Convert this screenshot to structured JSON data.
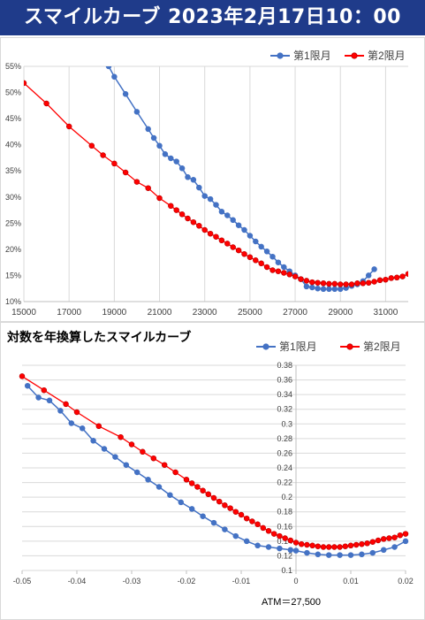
{
  "header": {
    "title": "スマイルカーブ  2023年2月17日10：00"
  },
  "chart2_title": "対数を年換算したスマイルカーブ",
  "atm_label": "ATM＝27,500",
  "colors": {
    "header_bg": "#1f3b8a",
    "series1": "#4472c4",
    "series2": "#ff0000",
    "grid": "#d9d9d9"
  },
  "chart_data": [
    {
      "type": "line",
      "title": "",
      "xlabel": "",
      "ylabel": "",
      "xlim": [
        15000,
        32000
      ],
      "ylim": [
        0.1,
        0.55
      ],
      "x_ticks": [
        15000,
        17000,
        19000,
        21000,
        23000,
        25000,
        27000,
        29000,
        31000
      ],
      "y_ticks": [
        0.1,
        0.15,
        0.2,
        0.25,
        0.3,
        0.35,
        0.4,
        0.45,
        0.5,
        0.55
      ],
      "y_tick_labels": [
        "10%",
        "15%",
        "20%",
        "25%",
        "30%",
        "35%",
        "40%",
        "45%",
        "50%",
        "55%"
      ],
      "grid": "vertical",
      "legend": "top-right",
      "series": [
        {
          "name": "第1限月",
          "color": "#4472c4",
          "x": [
            18750,
            19000,
            19500,
            20000,
            20500,
            20750,
            21000,
            21250,
            21500,
            21750,
            22000,
            22250,
            22500,
            22750,
            23000,
            23250,
            23500,
            23750,
            24000,
            24250,
            24500,
            24750,
            25000,
            25250,
            25500,
            25750,
            26000,
            26250,
            26500,
            26750,
            27000,
            27250,
            27500,
            27750,
            28000,
            28250,
            28500,
            28750,
            29000,
            29250,
            29500,
            29750,
            30000,
            30250,
            30500
          ],
          "y": [
            0.55,
            0.53,
            0.497,
            0.463,
            0.43,
            0.413,
            0.398,
            0.382,
            0.374,
            0.368,
            0.355,
            0.338,
            0.333,
            0.318,
            0.302,
            0.296,
            0.285,
            0.272,
            0.265,
            0.256,
            0.246,
            0.237,
            0.226,
            0.215,
            0.205,
            0.196,
            0.186,
            0.175,
            0.166,
            0.158,
            0.15,
            0.143,
            0.129,
            0.127,
            0.125,
            0.124,
            0.124,
            0.124,
            0.124,
            0.126,
            0.13,
            0.133,
            0.139,
            0.15,
            0.162
          ]
        },
        {
          "name": "第2限月",
          "color": "#ff0000",
          "x": [
            15000,
            16000,
            17000,
            18000,
            18500,
            19000,
            19500,
            20000,
            20500,
            21000,
            21500,
            21750,
            22000,
            22250,
            22500,
            22750,
            23000,
            23250,
            23500,
            23750,
            24000,
            24250,
            24500,
            24750,
            25000,
            25250,
            25500,
            25750,
            26000,
            26250,
            26500,
            26750,
            27000,
            27250,
            27500,
            27750,
            28000,
            28250,
            28500,
            28750,
            29000,
            29250,
            29500,
            29750,
            30000,
            30250,
            30500,
            30750,
            31000,
            31250,
            31500,
            31750,
            32000
          ],
          "y": [
            0.518,
            0.479,
            0.435,
            0.398,
            0.38,
            0.364,
            0.347,
            0.329,
            0.317,
            0.298,
            0.283,
            0.275,
            0.267,
            0.259,
            0.252,
            0.245,
            0.237,
            0.23,
            0.224,
            0.217,
            0.211,
            0.204,
            0.198,
            0.191,
            0.185,
            0.179,
            0.173,
            0.166,
            0.16,
            0.158,
            0.155,
            0.152,
            0.148,
            0.143,
            0.14,
            0.137,
            0.136,
            0.135,
            0.134,
            0.134,
            0.133,
            0.133,
            0.133,
            0.135,
            0.135,
            0.136,
            0.138,
            0.141,
            0.142,
            0.145,
            0.146,
            0.148,
            0.153
          ]
        }
      ]
    },
    {
      "type": "line",
      "title": "対数を年換算したスマイルカーブ",
      "xlabel": "ATM＝27,500",
      "ylabel": "",
      "xlim": [
        -0.05,
        0.02
      ],
      "ylim": [
        0.1,
        0.38
      ],
      "x_ticks": [
        -0.05,
        -0.04,
        -0.03,
        -0.02,
        -0.01,
        0,
        0.01,
        0.02
      ],
      "x_tick_labels": [
        "-0.05",
        "-0.04",
        "-0.03",
        "-0.02",
        "-0.01",
        "0",
        "0.01",
        "0.02"
      ],
      "y_ticks": [
        0.1,
        0.12,
        0.14,
        0.16,
        0.18,
        0.2,
        0.22,
        0.24,
        0.26,
        0.28,
        0.3,
        0.32,
        0.34,
        0.36,
        0.38
      ],
      "y_tick_labels": [
        "0.1",
        "0.12",
        "0.14",
        "0.16",
        "0.18",
        "0.2",
        "0.22",
        "0.24",
        "0.26",
        "0.28",
        "0.3",
        "0.32",
        "0.34",
        "0.36",
        "0.38"
      ],
      "grid": "horizontal",
      "legend": "top-right",
      "series": [
        {
          "name": "第1限月",
          "color": "#4472c4",
          "x": [
            -0.049,
            -0.047,
            -0.045,
            -0.043,
            -0.041,
            -0.039,
            -0.037,
            -0.035,
            -0.033,
            -0.031,
            -0.029,
            -0.027,
            -0.025,
            -0.023,
            -0.021,
            -0.019,
            -0.017,
            -0.015,
            -0.013,
            -0.011,
            -0.009,
            -0.007,
            -0.005,
            -0.003,
            -0.001,
            0.0,
            0.002,
            0.004,
            0.006,
            0.008,
            0.01,
            0.012,
            0.014,
            0.016,
            0.018,
            0.02
          ],
          "y": [
            0.352,
            0.336,
            0.332,
            0.318,
            0.301,
            0.294,
            0.277,
            0.266,
            0.255,
            0.244,
            0.234,
            0.224,
            0.214,
            0.203,
            0.193,
            0.184,
            0.174,
            0.165,
            0.156,
            0.147,
            0.14,
            0.134,
            0.132,
            0.13,
            0.128,
            0.127,
            0.124,
            0.122,
            0.121,
            0.121,
            0.121,
            0.122,
            0.124,
            0.128,
            0.132,
            0.14
          ]
        },
        {
          "name": "第2限月",
          "color": "#ff0000",
          "x": [
            -0.05,
            -0.046,
            -0.042,
            -0.04,
            -0.036,
            -0.032,
            -0.03,
            -0.028,
            -0.026,
            -0.024,
            -0.022,
            -0.02,
            -0.019,
            -0.018,
            -0.017,
            -0.016,
            -0.015,
            -0.014,
            -0.013,
            -0.012,
            -0.011,
            -0.01,
            -0.009,
            -0.008,
            -0.007,
            -0.006,
            -0.005,
            -0.004,
            -0.003,
            -0.002,
            -0.001,
            0.0,
            0.001,
            0.002,
            0.003,
            0.004,
            0.005,
            0.006,
            0.007,
            0.008,
            0.009,
            0.01,
            0.011,
            0.012,
            0.013,
            0.014,
            0.015,
            0.016,
            0.017,
            0.018,
            0.019,
            0.02
          ],
          "y": [
            0.365,
            0.346,
            0.327,
            0.316,
            0.297,
            0.282,
            0.272,
            0.262,
            0.253,
            0.244,
            0.234,
            0.224,
            0.219,
            0.214,
            0.209,
            0.204,
            0.199,
            0.194,
            0.189,
            0.185,
            0.18,
            0.176,
            0.171,
            0.167,
            0.163,
            0.158,
            0.154,
            0.15,
            0.147,
            0.144,
            0.141,
            0.138,
            0.136,
            0.135,
            0.134,
            0.133,
            0.132,
            0.132,
            0.132,
            0.132,
            0.133,
            0.134,
            0.135,
            0.136,
            0.137,
            0.139,
            0.141,
            0.143,
            0.144,
            0.145,
            0.148,
            0.15
          ]
        }
      ]
    }
  ]
}
